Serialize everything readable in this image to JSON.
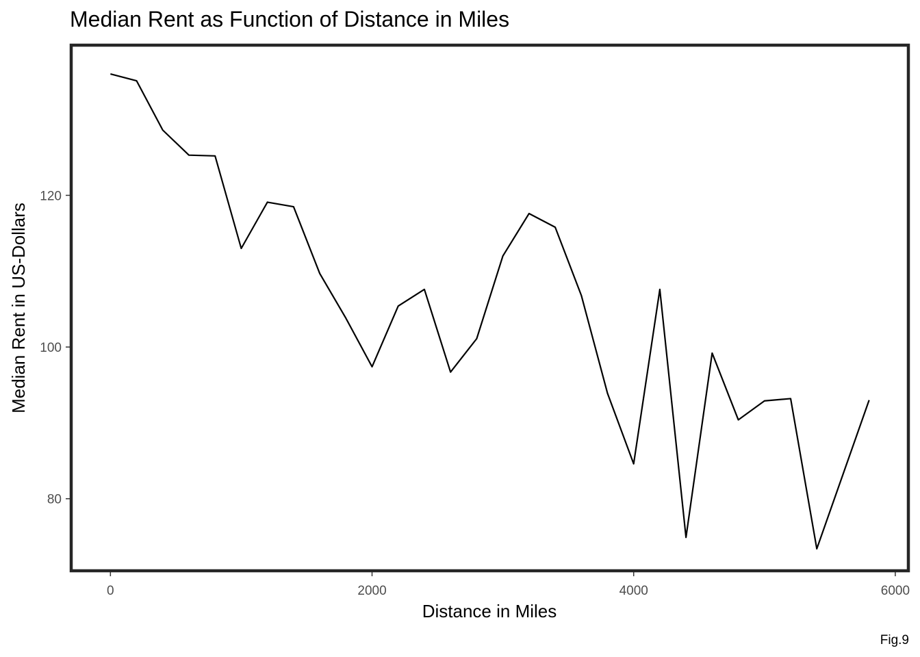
{
  "chart_data": {
    "type": "line",
    "title": "Median Rent as Function of Distance in Miles",
    "xlabel": "Distance in Miles",
    "ylabel": "Median Rent in US-Dollars",
    "caption": "Fig.9",
    "xlim": [
      -300,
      6100
    ],
    "ylim": [
      70.5,
      139.8
    ],
    "xticks": [
      0,
      2000,
      4000,
      6000
    ],
    "xtick_labels": [
      "0",
      "2000",
      "4000",
      "6000"
    ],
    "yticks": [
      80,
      100,
      120
    ],
    "ytick_labels": [
      "80",
      "100",
      "120"
    ],
    "grid": false,
    "legend": "none",
    "line_color": "#000000",
    "frame_color": "#262626",
    "series": [
      {
        "x": [
          0,
          200,
          400,
          600,
          800,
          1000,
          1200,
          1400,
          1600,
          1800,
          2000,
          2200,
          2400,
          2600,
          2800,
          3000,
          3200,
          3400,
          3600,
          3800,
          4000,
          4200,
          4400,
          4600,
          4800,
          5000,
          5200,
          5400,
          5600,
          5800
        ],
        "y": [
          136.0,
          135.1,
          128.6,
          125.3,
          125.2,
          113.0,
          119.1,
          118.5,
          109.7,
          103.8,
          97.4,
          105.4,
          107.6,
          96.7,
          101.1,
          112.0,
          117.6,
          115.8,
          106.8,
          93.9,
          84.6,
          107.6,
          74.9,
          99.2,
          90.4,
          92.9,
          93.2,
          73.4,
          83.2,
          93.0
        ]
      }
    ]
  }
}
